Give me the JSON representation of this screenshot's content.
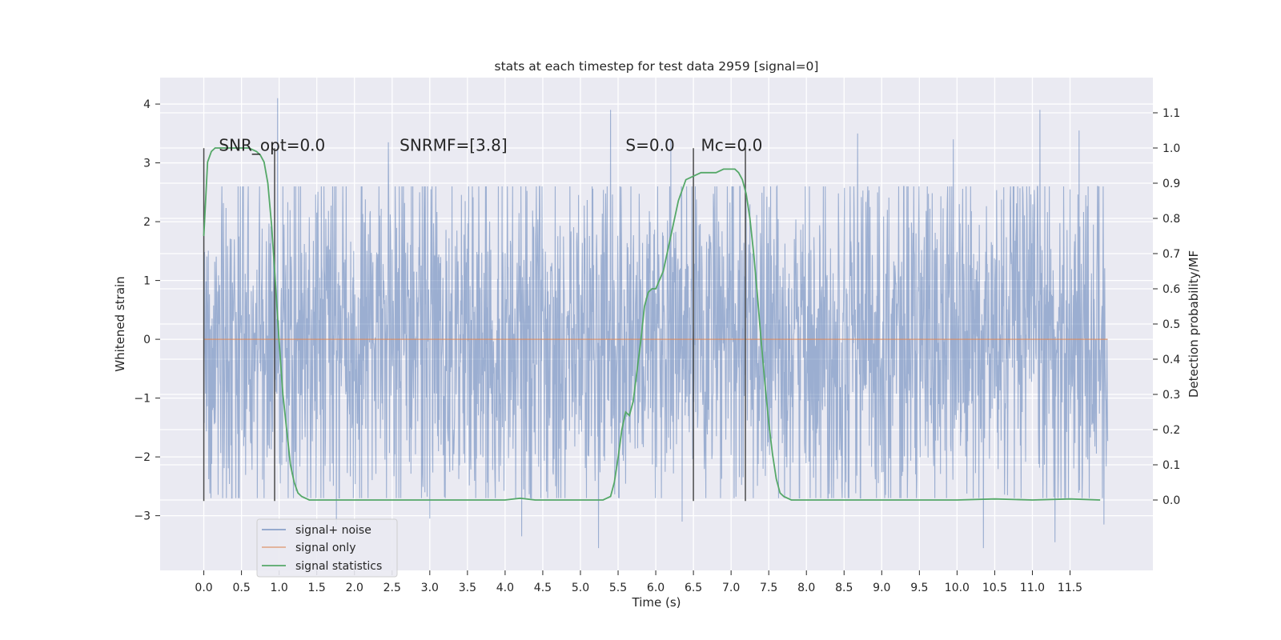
{
  "chart_data": {
    "type": "line",
    "title": "stats at each timestep for test data 2959 [signal=0]",
    "xlabel": "Time (s)",
    "ylabel": "Whitened strain",
    "ylabel_right": "Detection probability/MF",
    "xlim": [
      -0.58,
      12.6
    ],
    "ylim": [
      -3.93,
      4.45
    ],
    "ylim_right": [
      -0.2,
      1.2
    ],
    "xticks": [
      "0.0",
      "0.5",
      "1.0",
      "1.5",
      "2.0",
      "2.5",
      "3.0",
      "3.5",
      "4.0",
      "4.5",
      "5.0",
      "5.5",
      "6.0",
      "6.5",
      "7.0",
      "7.5",
      "8.0",
      "8.5",
      "9.0",
      "9.5",
      "10.0",
      "10.5",
      "11.0",
      "11.5"
    ],
    "yticks": [
      "4",
      "3",
      "2",
      "1",
      "0",
      "−1",
      "−2",
      "−3"
    ],
    "yticks_right": [
      "1.1",
      "1.0",
      "0.9",
      "0.8",
      "0.7",
      "0.6",
      "0.5",
      "0.4",
      "0.3",
      "0.2",
      "0.1",
      "0.0"
    ],
    "grid": true,
    "legend_position": "lower-left",
    "annotations": [
      {
        "text": "SNR_opt=0.0",
        "x": 0.2,
        "y": 3.3
      },
      {
        "text": "SNRMF=[3.8]",
        "x": 2.6,
        "y": 3.3
      },
      {
        "text": "S=0.0",
        "x": 5.6,
        "y": 3.3
      },
      {
        "text": "Mc=0.0",
        "x": 6.6,
        "y": 3.3
      }
    ],
    "window_markers": [
      {
        "x": 0.0,
        "y_top": 3.25,
        "y_bottom": -2.75
      },
      {
        "x": 0.94,
        "y_top": 3.25,
        "y_bottom": -2.75
      },
      {
        "x": 6.5,
        "y_top": 3.25,
        "y_bottom": -2.75
      },
      {
        "x": 7.19,
        "y_top": 3.25,
        "y_bottom": -2.75
      }
    ],
    "series": [
      {
        "name": "signal+ noise",
        "color": "#4c72b0",
        "axis": "left",
        "x_start": 0.0,
        "x_end": 12.0,
        "band_1sigma": [
          -1.55,
          1.5
        ],
        "typical_range": [
          -2.7,
          2.6
        ],
        "peaks": [
          {
            "x": 0.98,
            "y": 4.1
          },
          {
            "x": 5.4,
            "y": 3.9
          },
          {
            "x": 11.1,
            "y": 3.9
          },
          {
            "x": 11.62,
            "y": 3.55
          },
          {
            "x": 2.45,
            "y": 3.35
          },
          {
            "x": 6.2,
            "y": 3.4
          },
          {
            "x": 8.68,
            "y": 3.5
          },
          {
            "x": 9.95,
            "y": 3.4
          },
          {
            "x": 0.0,
            "y": 2.8
          },
          {
            "x": 1.76,
            "y": -3.15
          },
          {
            "x": 3.0,
            "y": -3.05
          },
          {
            "x": 4.22,
            "y": -3.35
          },
          {
            "x": 5.24,
            "y": -3.55
          },
          {
            "x": 6.35,
            "y": -3.1
          },
          {
            "x": 10.35,
            "y": -3.55
          },
          {
            "x": 11.3,
            "y": -3.45
          },
          {
            "x": 11.95,
            "y": -3.15
          }
        ]
      },
      {
        "name": "signal only",
        "color": "#dd8452",
        "axis": "left",
        "x": [
          0.0,
          12.0
        ],
        "y": [
          0.0,
          0.0
        ]
      },
      {
        "name": "signal statistics",
        "color": "#55a868",
        "axis": "right",
        "x": [
          0.0,
          0.05,
          0.1,
          0.15,
          0.2,
          0.3,
          0.4,
          0.5,
          0.6,
          0.7,
          0.75,
          0.8,
          0.85,
          0.9,
          0.95,
          1.0,
          1.05,
          1.1,
          1.15,
          1.2,
          1.25,
          1.3,
          1.4,
          1.5,
          2.0,
          3.0,
          4.0,
          4.2,
          4.4,
          5.0,
          5.3,
          5.4,
          5.45,
          5.5,
          5.55,
          5.6,
          5.65,
          5.7,
          5.8,
          5.85,
          5.9,
          5.95,
          6.0,
          6.1,
          6.2,
          6.3,
          6.4,
          6.5,
          6.6,
          6.7,
          6.8,
          6.9,
          7.0,
          7.05,
          7.1,
          7.15,
          7.2,
          7.25,
          7.3,
          7.35,
          7.4,
          7.45,
          7.5,
          7.55,
          7.6,
          7.65,
          7.7,
          7.8,
          8.0,
          9.0,
          10.0,
          10.5,
          11.0,
          11.5,
          11.9
        ],
        "y": [
          0.75,
          0.96,
          0.99,
          1.0,
          1.0,
          1.0,
          1.0,
          1.0,
          1.0,
          0.99,
          0.98,
          0.96,
          0.9,
          0.78,
          0.62,
          0.45,
          0.3,
          0.2,
          0.1,
          0.05,
          0.02,
          0.01,
          0.0,
          0.0,
          0.0,
          0.0,
          0.0,
          0.005,
          0.0,
          0.0,
          0.0,
          0.01,
          0.05,
          0.12,
          0.2,
          0.25,
          0.24,
          0.28,
          0.45,
          0.55,
          0.59,
          0.6,
          0.6,
          0.65,
          0.75,
          0.85,
          0.91,
          0.92,
          0.93,
          0.93,
          0.93,
          0.94,
          0.94,
          0.94,
          0.93,
          0.91,
          0.87,
          0.8,
          0.7,
          0.58,
          0.45,
          0.33,
          0.22,
          0.13,
          0.06,
          0.02,
          0.01,
          0.0,
          0.0,
          0.0,
          0.0,
          0.003,
          0.0,
          0.003,
          0.0
        ]
      }
    ]
  }
}
